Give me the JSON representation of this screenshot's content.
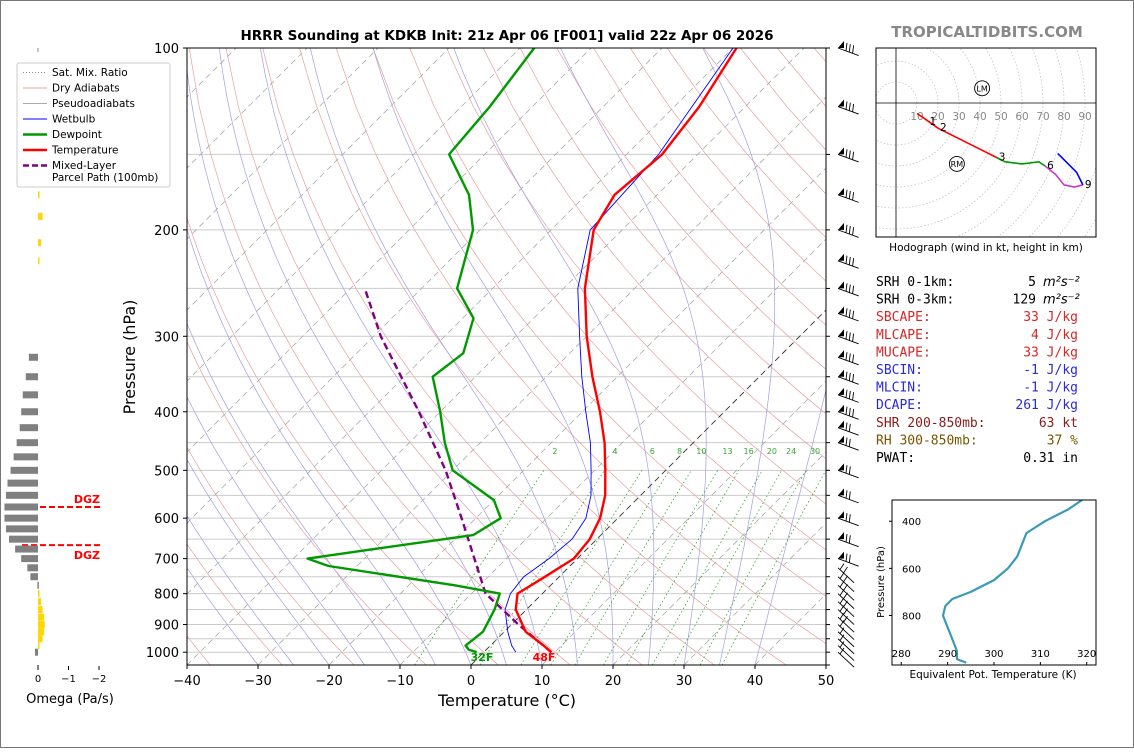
{
  "title": "HRRR Sounding at KDKB Init: 21z Apr 06 [F001] valid 22z Apr 06 2026",
  "brand": "TROPICALTIDBITS.COM",
  "colors": {
    "temperature": "#ff0000",
    "dewpoint": "#009900",
    "wetbulb": "#0000ff",
    "parcel": "#800080",
    "dry_adiabat": "#e8a0a0",
    "pseudo_adiabat": "#a0a0e0",
    "mixing_ratio": "#33aa33",
    "dgz": "#ff0000",
    "theta_e": "#3a9ab8",
    "omega_neg": "#808080",
    "omega_pos": "#ffd700"
  },
  "legend": [
    {
      "key": "mix",
      "label": "Sat. Mix. Ratio"
    },
    {
      "key": "dry",
      "label": "Dry Adiabats"
    },
    {
      "key": "pseudo",
      "label": "Pseudoadiabats"
    },
    {
      "key": "wetbulb",
      "label": "Wetbulb"
    },
    {
      "key": "dewpoint",
      "label": "Dewpoint"
    },
    {
      "key": "temp",
      "label": "Temperature"
    },
    {
      "key": "parcel",
      "label": "Mixed-Layer"
    },
    {
      "key": "parcel2",
      "label": "Parcel Path (100mb)"
    }
  ],
  "chart_data": [
    {
      "type": "line",
      "name": "skewt",
      "xlabel": "Temperature (°C)",
      "ylabel": "Pressure (hPa)",
      "xlim": [
        -40,
        50
      ],
      "ylim": [
        1050,
        100
      ],
      "xticks": [
        "−40",
        "−30",
        "−20",
        "−10",
        "0",
        "10",
        "20",
        "30",
        "40",
        "50"
      ],
      "yticks": [
        "100",
        "200",
        "300",
        "400",
        "500",
        "600",
        "700",
        "800",
        "900",
        "1000"
      ],
      "mixing_ratio_labels": [
        "2",
        "4",
        "6",
        "8",
        "10",
        "13",
        "16",
        "20",
        "24",
        "30",
        "36"
      ],
      "surface_temp_label": "48F",
      "surface_dew_label": "32F",
      "series": [
        {
          "name": "Temperature",
          "points": [
            [
              1000,
              9.5
            ],
            [
              975,
              7.5
            ],
            [
              925,
              3.0
            ],
            [
              850,
              -1.5
            ],
            [
              800,
              -3.5
            ],
            [
              750,
              -2.0
            ],
            [
              700,
              -0.5
            ],
            [
              650,
              -1.0
            ],
            [
              600,
              -2.5
            ],
            [
              550,
              -5.0
            ],
            [
              500,
              -8.5
            ],
            [
              450,
              -12.5
            ],
            [
              400,
              -17.5
            ],
            [
              350,
              -23.5
            ],
            [
              300,
              -30.0
            ],
            [
              250,
              -37.0
            ],
            [
              200,
              -44.0
            ],
            [
              175,
              -46.0
            ],
            [
              150,
              -45.0
            ],
            [
              125,
              -46.5
            ],
            [
              100,
              -49.5
            ]
          ]
        },
        {
          "name": "Dewpoint",
          "points": [
            [
              1000,
              -1.0
            ],
            [
              990,
              -2.5
            ],
            [
              975,
              -3.5
            ],
            [
              925,
              -3.0
            ],
            [
              850,
              -4.5
            ],
            [
              800,
              -6.0
            ],
            [
              775,
              -13.5
            ],
            [
              720,
              -34.0
            ],
            [
              700,
              -38.0
            ],
            [
              675,
              -30.0
            ],
            [
              640,
              -18.0
            ],
            [
              600,
              -16.5
            ],
            [
              560,
              -20.0
            ],
            [
              500,
              -30.0
            ],
            [
              450,
              -35.0
            ],
            [
              400,
              -40.0
            ],
            [
              350,
              -46.0
            ],
            [
              320,
              -45.0
            ],
            [
              280,
              -48.5
            ],
            [
              250,
              -55.0
            ],
            [
              200,
              -61.0
            ],
            [
              175,
              -66.5
            ],
            [
              150,
              -75.0
            ],
            [
              125,
              -76.0
            ],
            [
              100,
              -78.0
            ]
          ]
        },
        {
          "name": "Wetbulb",
          "points": [
            [
              1000,
              4.5
            ],
            [
              975,
              3.0
            ],
            [
              925,
              0.5
            ],
            [
              850,
              -3.0
            ],
            [
              800,
              -4.5
            ],
            [
              750,
              -5.0
            ],
            [
              700,
              -4.0
            ],
            [
              650,
              -3.5
            ],
            [
              600,
              -4.5
            ],
            [
              550,
              -7.0
            ],
            [
              500,
              -10.5
            ],
            [
              450,
              -14.5
            ],
            [
              400,
              -19.5
            ],
            [
              350,
              -25.0
            ],
            [
              300,
              -31.0
            ],
            [
              250,
              -38.0
            ],
            [
              200,
              -44.5
            ],
            [
              150,
              -45.5
            ],
            [
              100,
              -50.0
            ]
          ]
        },
        {
          "name": "Mixed-Layer Parcel Path (100mb)",
          "points": [
            [
              1000,
              9.5
            ],
            [
              900,
              1.0
            ],
            [
              800,
              -8.0
            ],
            [
              700,
              -14.5
            ],
            [
              600,
              -22.0
            ],
            [
              500,
              -31.0
            ],
            [
              400,
              -43.0
            ],
            [
              300,
              -59.0
            ],
            [
              250,
              -68.0
            ]
          ]
        }
      ],
      "dgz": [
        {
          "label": "DGZ",
          "p": 575
        },
        {
          "label": "DGZ",
          "p": 665
        }
      ]
    },
    {
      "type": "bar",
      "name": "omega",
      "xlabel": "Omega (Pa/s)",
      "xticks": [
        "0",
        "−1",
        "−2"
      ],
      "xlim": [
        0.2,
        -2.0
      ],
      "levels": [
        [
          1000,
          0.1
        ],
        [
          975,
          -0.02
        ],
        [
          950,
          -0.15
        ],
        [
          925,
          -0.2
        ],
        [
          900,
          -0.22
        ],
        [
          875,
          -0.2
        ],
        [
          850,
          -0.15
        ],
        [
          825,
          -0.1
        ],
        [
          800,
          -0.05
        ],
        [
          775,
          0.02
        ],
        [
          750,
          0.25
        ],
        [
          725,
          0.35
        ],
        [
          700,
          0.55
        ],
        [
          675,
          0.75
        ],
        [
          650,
          0.95
        ],
        [
          625,
          1.05
        ],
        [
          600,
          1.1
        ],
        [
          575,
          1.1
        ],
        [
          550,
          1.05
        ],
        [
          525,
          1.0
        ],
        [
          500,
          0.9
        ],
        [
          475,
          0.8
        ],
        [
          450,
          0.7
        ],
        [
          425,
          0.6
        ],
        [
          400,
          0.55
        ],
        [
          375,
          0.5
        ],
        [
          350,
          0.4
        ],
        [
          325,
          0.3
        ],
        [
          225,
          -0.05
        ],
        [
          210,
          -0.1
        ],
        [
          190,
          -0.15
        ],
        [
          175,
          -0.05
        ]
      ]
    },
    {
      "type": "line",
      "name": "hodograph",
      "title": "Hodograph (wind in kt, height in km)",
      "ring_labels": [
        "10",
        "20",
        "30",
        "40",
        "50",
        "60",
        "70",
        "80",
        "90"
      ],
      "markers": [
        {
          "label": "LM"
        },
        {
          "label": "RM"
        }
      ],
      "height_labels": [
        "1",
        "2",
        "3",
        "6",
        "9"
      ],
      "segments": [
        {
          "name": "0-3km",
          "color": "#ff0000",
          "points": [
            [
              10,
              -5
            ],
            [
              13,
              -7
            ],
            [
              20,
              -12
            ],
            [
              30,
              -17
            ],
            [
              40,
              -22
            ],
            [
              48,
              -26
            ]
          ]
        },
        {
          "name": "3-6km",
          "color": "#009900",
          "points": [
            [
              48,
              -26
            ],
            [
              52,
              -28
            ],
            [
              60,
              -29
            ],
            [
              68,
              -28
            ],
            [
              71,
              -30
            ]
          ]
        },
        {
          "name": "6-9km",
          "color": "#cc33cc",
          "points": [
            [
              71,
              -30
            ],
            [
              76,
              -34
            ],
            [
              80,
              -39
            ],
            [
              85,
              -40
            ],
            [
              89,
              -39
            ]
          ]
        },
        {
          "name": "9-12km",
          "color": "#0000ff",
          "points": [
            [
              89,
              -39
            ],
            [
              86,
              -33
            ],
            [
              80,
              -27
            ],
            [
              77,
              -24
            ]
          ]
        }
      ]
    },
    {
      "type": "line",
      "name": "theta_e",
      "xlabel": "Equivalent Pot. Temperature (K)",
      "ylabel": "Pressure (hPa)",
      "xticks": [
        "280",
        "290",
        "300",
        "310",
        "320"
      ],
      "yticks": [
        "400",
        "600",
        "800"
      ],
      "xlim": [
        278,
        322
      ],
      "ylim": [
        1010,
        310
      ],
      "points": [
        [
          1000,
          294
        ],
        [
          985,
          292
        ],
        [
          950,
          292
        ],
        [
          900,
          291
        ],
        [
          850,
          290
        ],
        [
          800,
          289
        ],
        [
          760,
          289.5
        ],
        [
          730,
          291
        ],
        [
          700,
          295
        ],
        [
          650,
          300
        ],
        [
          600,
          303
        ],
        [
          550,
          305
        ],
        [
          500,
          306
        ],
        [
          450,
          307
        ],
        [
          400,
          311
        ],
        [
          350,
          316
        ],
        [
          310,
          319
        ]
      ]
    }
  ],
  "wind_barbs_label": "wind barbs",
  "indices": [
    {
      "label": "SRH 0-1km:",
      "value": "5",
      "unit": "m²s⁻²",
      "color": "#000000"
    },
    {
      "label": "SRH 0-3km:",
      "value": "129",
      "unit": "m²s⁻²",
      "color": "#000000"
    },
    {
      "label": "SBCAPE:",
      "value": "33 J/kg",
      "unit": "",
      "color": "#d62728"
    },
    {
      "label": "MLCAPE:",
      "value": "4 J/kg",
      "unit": "",
      "color": "#d62728"
    },
    {
      "label": "MUCAPE:",
      "value": "33 J/kg",
      "unit": "",
      "color": "#d62728"
    },
    {
      "label": "SBCIN:",
      "value": "-1 J/kg",
      "unit": "",
      "color": "#2a2ad8"
    },
    {
      "label": "MLCIN:",
      "value": "-1 J/kg",
      "unit": "",
      "color": "#2a2ad8"
    },
    {
      "label": "DCAPE:",
      "value": "261 J/kg",
      "unit": "",
      "color": "#2a2ad8"
    },
    {
      "label": "SHR 200-850mb:",
      "value": "63 kt",
      "unit": "",
      "color": "#8b1a1a"
    },
    {
      "label": "RH 300-850mb:",
      "value": "37 %",
      "unit": "",
      "color": "#7a5500"
    },
    {
      "label": "PWAT:",
      "value": "0.31 in",
      "unit": "",
      "color": "#000000"
    }
  ]
}
